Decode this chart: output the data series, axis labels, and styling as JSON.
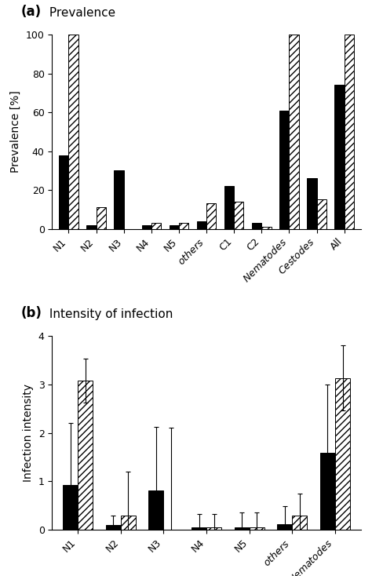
{
  "panel_a": {
    "ylabel": "Prevalence [%]",
    "ylim": [
      0,
      100
    ],
    "yticks": [
      0,
      20,
      40,
      60,
      80,
      100
    ],
    "categories": [
      "N1",
      "N2",
      "N3",
      "N4",
      "N5",
      "others",
      "C1",
      "C2",
      "Nematodes",
      "Cestodes",
      "All"
    ],
    "black_values": [
      38,
      2,
      30,
      2,
      2,
      4,
      22,
      3,
      61,
      26,
      74
    ],
    "hatch_values": [
      100,
      11,
      0,
      3,
      3,
      13,
      14,
      1,
      100,
      15,
      100
    ],
    "label_bold": "(a)",
    "label_normal": " Prevalence",
    "italic_cats": [
      "others",
      "Nematodes",
      "Cestodes"
    ]
  },
  "panel_b": {
    "ylabel": "Infection intensity",
    "ylim": [
      0,
      4
    ],
    "yticks": [
      0,
      1,
      2,
      3,
      4
    ],
    "categories": [
      "N1",
      "N2",
      "N3",
      "N4",
      "N5",
      "others",
      "Nematodes"
    ],
    "black_values": [
      0.92,
      0.1,
      0.82,
      0.05,
      0.06,
      0.11,
      1.58
    ],
    "hatch_values": [
      3.08,
      0.3,
      0.0,
      0.05,
      0.06,
      0.3,
      3.13
    ],
    "black_err": [
      1.28,
      0.2,
      1.3,
      0.28,
      0.3,
      0.38,
      1.42
    ],
    "hatch_err": [
      0.45,
      0.9,
      2.1,
      0.28,
      0.3,
      0.45,
      0.67
    ],
    "label_bold": "(b)",
    "label_normal": " Intensity of infection",
    "italic_cats": [
      "others",
      "Nematodes"
    ]
  },
  "black_color": "#000000",
  "hatch_color": "#ffffff",
  "hatch_pattern": "////",
  "bar_width": 0.35,
  "background_color": "#ffffff"
}
